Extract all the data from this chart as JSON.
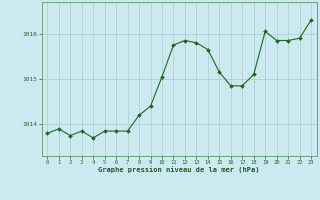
{
  "x": [
    0,
    1,
    2,
    3,
    4,
    5,
    6,
    7,
    8,
    9,
    10,
    11,
    12,
    13,
    14,
    15,
    16,
    17,
    18,
    19,
    20,
    21,
    22,
    23
  ],
  "y": [
    1013.8,
    1013.9,
    1013.75,
    1013.85,
    1013.7,
    1013.85,
    1013.85,
    1013.85,
    1014.2,
    1014.4,
    1015.05,
    1015.75,
    1015.85,
    1015.8,
    1015.65,
    1015.15,
    1014.85,
    1014.85,
    1015.1,
    1016.05,
    1015.85,
    1015.85,
    1015.9,
    1016.3
  ],
  "line_color": "#1a6b1a",
  "marker_color": "#1a6b1a",
  "bg_color": "#cce8f0",
  "grid_color": "#aacccc",
  "xlabel": "Graphe pression niveau de la mer (hPa)",
  "xlabel_color": "#1a5c1a",
  "tick_color": "#1a6b1a",
  "yticks": [
    1014,
    1015,
    1016
  ],
  "ylim": [
    1013.3,
    1016.7
  ],
  "xlim": [
    -0.5,
    23.5
  ],
  "figsize": [
    3.2,
    2.0
  ],
  "dpi": 100
}
